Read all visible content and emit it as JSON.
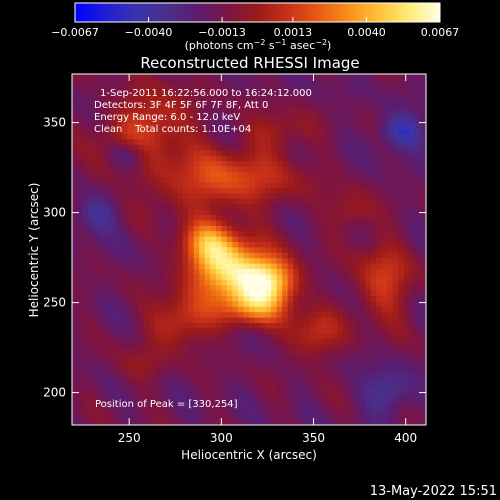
{
  "chart_data": {
    "type": "heatmap",
    "title": "Reconstructed RHESSI Image",
    "xlabel": "Heliocentric X (arcsec)",
    "ylabel": "Heliocentric Y (arcsec)",
    "xlim": [
      219,
      411
    ],
    "ylim": [
      182,
      377
    ],
    "x_ticks": [
      250,
      300,
      350,
      400
    ],
    "y_ticks": [
      200,
      250,
      300,
      350
    ],
    "x_tick_labels": [
      "250",
      "300",
      "350",
      "400"
    ],
    "y_tick_labels": [
      "200",
      "250",
      "300",
      "350"
    ],
    "colorbar": {
      "min": -0.0067,
      "max": 0.0067,
      "ticks": [
        -0.0067,
        -0.004,
        -0.0013,
        0.0013,
        0.004,
        0.0067
      ],
      "tick_labels": [
        "−0.0067",
        "−0.0040",
        "−0.0013",
        "0.0013",
        "0.0040",
        "0.0067"
      ],
      "unit_text": "(photons cm",
      "unit_exp1": "−2",
      "unit_mid1": " s",
      "unit_exp2": "−1",
      "unit_mid2": " asec",
      "unit_exp3": "−2",
      "unit_end": ")",
      "colors": [
        "#0000ff",
        "#1f1dd6",
        "#3b33ad",
        "#4a2f8a",
        "#5b1c6e",
        "#7a1446",
        "#9a1a1a",
        "#c8311a",
        "#e85b12",
        "#f8901a",
        "#ffc23a",
        "#ffeb7a",
        "#ffffe8"
      ]
    },
    "annotations": [
      "1-Sep-2011 16:22:56.000 to 16:24:12.000",
      "Detectors: 3F 4F 5F 6F 7F 8F, Att 0",
      "Energy Range: 6.0 - 12.0 keV",
      "Clean    Total counts: 1.10E+04"
    ],
    "peak_label": "Position of Peak = [330,254]",
    "peak": [
      330,
      254
    ],
    "sources": [
      {
        "x": 305,
        "y": 268,
        "sx": 15,
        "sy": 11,
        "amp": 0.0064
      },
      {
        "x": 326,
        "y": 262,
        "sx": 11,
        "sy": 9,
        "amp": 0.0056
      },
      {
        "x": 293,
        "y": 283,
        "sx": 11,
        "sy": 9,
        "amp": 0.0044
      },
      {
        "x": 316,
        "y": 248,
        "sx": 13,
        "sy": 8,
        "amp": 0.004
      },
      {
        "x": 300,
        "y": 318,
        "sx": 28,
        "sy": 12,
        "amp": 0.0034
      },
      {
        "x": 262,
        "y": 350,
        "sx": 16,
        "sy": 13,
        "amp": 0.003
      },
      {
        "x": 278,
        "y": 240,
        "sx": 12,
        "sy": 10,
        "amp": 0.003
      },
      {
        "x": 350,
        "y": 232,
        "sx": 10,
        "sy": 10,
        "amp": 0.0026
      },
      {
        "x": 388,
        "y": 262,
        "sx": 11,
        "sy": 16,
        "amp": 0.0028
      },
      {
        "x": 370,
        "y": 300,
        "sx": 8,
        "sy": 8,
        "amp": 0.0018
      },
      {
        "x": 240,
        "y": 330,
        "sx": 9,
        "sy": 9,
        "amp": 0.0018
      },
      {
        "x": 255,
        "y": 215,
        "sx": 10,
        "sy": 8,
        "amp": 0.0012
      },
      {
        "x": 330,
        "y": 345,
        "sx": 12,
        "sy": 8,
        "amp": 0.0018
      }
    ],
    "negative_wells": [
      {
        "x": 248,
        "y": 332,
        "sx": 8,
        "sy": 6,
        "amp": -0.003
      },
      {
        "x": 398,
        "y": 345,
        "sx": 9,
        "sy": 7,
        "amp": -0.003
      },
      {
        "x": 390,
        "y": 200,
        "sx": 9,
        "sy": 9,
        "amp": -0.0024
      },
      {
        "x": 232,
        "y": 300,
        "sx": 8,
        "sy": 8,
        "amp": -0.0022
      }
    ]
  },
  "timestamp": "13-May-2022 15:51"
}
